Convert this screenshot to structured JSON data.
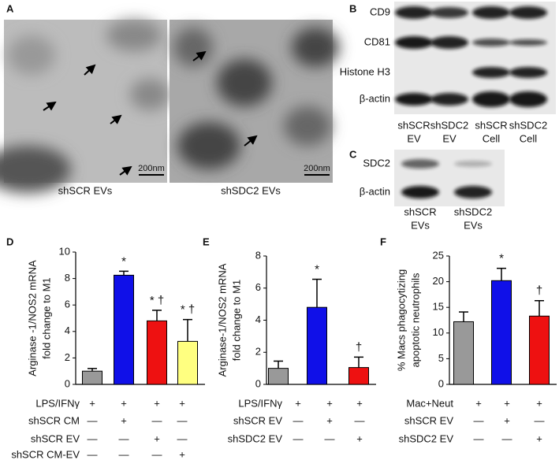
{
  "panels": {
    "a": {
      "label": "A",
      "images": [
        {
          "caption": "shSCR EVs",
          "scale_bar": "200nm"
        },
        {
          "caption": "shSDC2 EVs",
          "scale_bar": "200nm"
        }
      ]
    },
    "b": {
      "label": "B",
      "rows": [
        "CD9",
        "CD81",
        "Histone H3",
        "β-actin"
      ],
      "columns": [
        [
          "shSCR",
          "EV"
        ],
        [
          "shSDC2",
          "EV"
        ],
        [
          "shSCR",
          "Cell"
        ],
        [
          "shSDC2",
          "Cell"
        ]
      ]
    },
    "c": {
      "label": "C",
      "rows": [
        "SDC2",
        "β-actin"
      ],
      "columns": [
        [
          "shSCR",
          "EVs"
        ],
        [
          "shSDC2",
          "EVs"
        ]
      ]
    }
  },
  "chart_data": [
    {
      "type": "bar",
      "panel_label": "D",
      "ylabel": [
        "Arginase -1/NOS2 mRNA",
        "fold change to M1"
      ],
      "values": [
        1.0,
        8.25,
        4.8,
        3.25
      ],
      "errors": [
        0.2,
        0.3,
        0.8,
        1.65
      ],
      "colors": [
        "#999999",
        "#1010e8",
        "#ee1111",
        "#ffff80"
      ],
      "annotations": [
        null,
        "*",
        "* †",
        "* †"
      ],
      "ylim": [
        0,
        10
      ],
      "yticks": [
        0,
        2,
        4,
        6,
        8,
        10
      ],
      "conditions": [
        {
          "label": "LPS/IFNγ",
          "marks": [
            "+",
            "+",
            "+",
            "+"
          ]
        },
        {
          "label": "shSCR CM",
          "marks": [
            "—",
            "+",
            "—",
            "—"
          ]
        },
        {
          "label": "shSCR EV",
          "marks": [
            "—",
            "—",
            "+",
            "—"
          ]
        },
        {
          "label": "shSCR CM-EV",
          "marks": [
            "—",
            "—",
            "—",
            "+"
          ]
        }
      ]
    },
    {
      "type": "bar",
      "panel_label": "E",
      "ylabel": [
        "Arginase-1/NOS2 mRNA",
        "fold change to M1"
      ],
      "values": [
        1.0,
        4.8,
        1.05
      ],
      "errors": [
        0.45,
        1.75,
        0.65
      ],
      "colors": [
        "#999999",
        "#1010e8",
        "#ee1111"
      ],
      "annotations": [
        null,
        "*",
        "†"
      ],
      "ylim": [
        0,
        8
      ],
      "yticks": [
        0,
        2,
        4,
        6,
        8
      ],
      "conditions": [
        {
          "label": "LPS/IFNγ",
          "marks": [
            "+",
            "+",
            "+"
          ]
        },
        {
          "label": "shSCR EV",
          "marks": [
            "—",
            "+",
            "—"
          ]
        },
        {
          "label": "shSDC2 EV",
          "marks": [
            "—",
            "—",
            "+"
          ]
        }
      ]
    },
    {
      "type": "bar",
      "panel_label": "F",
      "ylabel": [
        "% Macs phagocytizing",
        "apoptotic neutrophils"
      ],
      "values": [
        12.2,
        20.2,
        13.3
      ],
      "errors": [
        1.9,
        2.4,
        3.0
      ],
      "colors": [
        "#999999",
        "#1010e8",
        "#ee1111"
      ],
      "annotations": [
        null,
        "*",
        "†"
      ],
      "ylim": [
        0,
        25
      ],
      "yticks": [
        0,
        5,
        10,
        15,
        20,
        25
      ],
      "conditions": [
        {
          "label": "Mac+Neut",
          "marks": [
            "+",
            "+",
            "+"
          ]
        },
        {
          "label": "shSCR EV",
          "marks": [
            "—",
            "+",
            "—"
          ]
        },
        {
          "label": "shSDC2 EV",
          "marks": [
            "—",
            "—",
            "+"
          ]
        }
      ]
    }
  ]
}
